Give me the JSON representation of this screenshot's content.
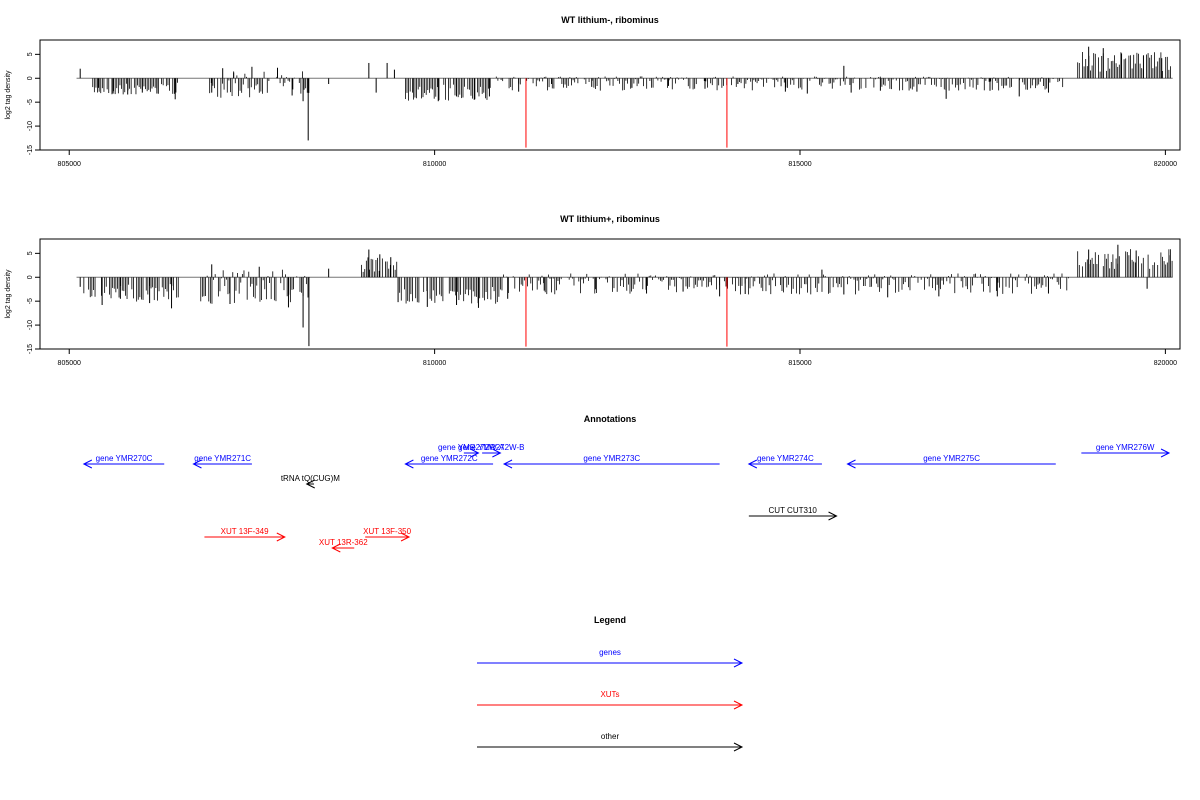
{
  "chart_data": [
    {
      "type": "bar",
      "title": "WT lithium-, ribominus",
      "ylabel": "log2 tag density",
      "xlabel": "",
      "xlim": [
        804600,
        820200
      ],
      "ylim": [
        -15,
        8
      ],
      "x_ticks": [
        805000,
        810000,
        815000,
        820000
      ],
      "y_ticks": [
        -15,
        -10,
        -5,
        0,
        5
      ],
      "baseline_range": [
        805100,
        820100
      ],
      "bar_color": "#000000",
      "highlight_color": "#ff0000",
      "highlights": [
        {
          "x": 811250,
          "y": -14.5
        },
        {
          "x": 814000,
          "y": -14.5
        }
      ],
      "spikes": [
        {
          "x": 805150,
          "y": 2
        },
        {
          "x": 805400,
          "y": -2
        },
        {
          "x": 805600,
          "y": -3.2
        },
        {
          "x": 805800,
          "y": -3.4
        },
        {
          "x": 806000,
          "y": -3.0
        },
        {
          "x": 806200,
          "y": -3.2
        },
        {
          "x": 806450,
          "y": -4.4
        },
        {
          "x": 806950,
          "y": -3.0
        },
        {
          "x": 807100,
          "y": 2.1
        },
        {
          "x": 807250,
          "y": 1.2
        },
        {
          "x": 807500,
          "y": 2.4
        },
        {
          "x": 807850,
          "y": 2.2
        },
        {
          "x": 808050,
          "y": -3.6
        },
        {
          "x": 808200,
          "y": -4.8
        },
        {
          "x": 808270,
          "y": -13
        },
        {
          "x": 808550,
          "y": -1.2
        },
        {
          "x": 809100,
          "y": 3.2
        },
        {
          "x": 809200,
          "y": -3.0
        },
        {
          "x": 809350,
          "y": 3.2
        },
        {
          "x": 809450,
          "y": 1.8
        },
        {
          "x": 809700,
          "y": -3.0
        },
        {
          "x": 810050,
          "y": -4.8
        },
        {
          "x": 810300,
          "y": -3.8
        },
        {
          "x": 810550,
          "y": -4.4
        },
        {
          "x": 810750,
          "y": -3.8
        },
        {
          "x": 811150,
          "y": -2.8
        },
        {
          "x": 811600,
          "y": -1.2
        },
        {
          "x": 812150,
          "y": -1.8
        },
        {
          "x": 812700,
          "y": -2.0
        },
        {
          "x": 813200,
          "y": -1.6
        },
        {
          "x": 813700,
          "y": -2.2
        },
        {
          "x": 814150,
          "y": -1.2
        },
        {
          "x": 814800,
          "y": -2.8
        },
        {
          "x": 815100,
          "y": -3.2
        },
        {
          "x": 815600,
          "y": 2.6
        },
        {
          "x": 815700,
          "y": -3.0
        },
        {
          "x": 816100,
          "y": -2.6
        },
        {
          "x": 816600,
          "y": -2.8
        },
        {
          "x": 817000,
          "y": -4.3
        },
        {
          "x": 817600,
          "y": -2.6
        },
        {
          "x": 818000,
          "y": -3.8
        },
        {
          "x": 818400,
          "y": -3.0
        },
        {
          "x": 818950,
          "y": 6.6
        },
        {
          "x": 819150,
          "y": 6.3
        },
        {
          "x": 819400,
          "y": 5.2
        },
        {
          "x": 819700,
          "y": 4.8
        },
        {
          "x": 819950,
          "y": 4.2
        }
      ],
      "dense_regions": [
        {
          "x_start": 805300,
          "x_end": 806500,
          "y_min": -3.5,
          "y_max": 0
        },
        {
          "x_start": 806900,
          "x_end": 808300,
          "y_min": -4.2,
          "y_max": 1.5
        },
        {
          "x_start": 809600,
          "x_end": 810800,
          "y_min": -4.8,
          "y_max": 0
        },
        {
          "x_start": 810800,
          "x_end": 818600,
          "y_min": -2.6,
          "y_max": 0.4
        },
        {
          "x_start": 818800,
          "x_end": 820100,
          "y_min": 0,
          "y_max": 5.5
        }
      ]
    },
    {
      "type": "bar",
      "title": "WT lithium+, ribominus",
      "ylabel": "log2 tag density",
      "xlabel": "",
      "xlim": [
        804600,
        820200
      ],
      "ylim": [
        -15,
        8
      ],
      "x_ticks": [
        805000,
        810000,
        815000,
        820000
      ],
      "y_ticks": [
        -15,
        -10,
        -5,
        0,
        5
      ],
      "baseline_range": [
        805100,
        820100
      ],
      "bar_color": "#000000",
      "highlight_color": "#ff0000",
      "highlights": [
        {
          "x": 811250,
          "y": -14.5
        },
        {
          "x": 814000,
          "y": -14.5
        }
      ],
      "spikes": [
        {
          "x": 805150,
          "y": -2
        },
        {
          "x": 805450,
          "y": -5.8
        },
        {
          "x": 805700,
          "y": -4.5
        },
        {
          "x": 806100,
          "y": -5.4
        },
        {
          "x": 806400,
          "y": -6.5
        },
        {
          "x": 806950,
          "y": 2.7
        },
        {
          "x": 807200,
          "y": -5.6
        },
        {
          "x": 807600,
          "y": 2.2
        },
        {
          "x": 808000,
          "y": -6.3
        },
        {
          "x": 808200,
          "y": -10.5
        },
        {
          "x": 808280,
          "y": -14.4
        },
        {
          "x": 808550,
          "y": 1.8
        },
        {
          "x": 809100,
          "y": 5.8
        },
        {
          "x": 809250,
          "y": 4.8
        },
        {
          "x": 809400,
          "y": 4.2
        },
        {
          "x": 809500,
          "y": -5.2
        },
        {
          "x": 809900,
          "y": -6.2
        },
        {
          "x": 810300,
          "y": -5.8
        },
        {
          "x": 810600,
          "y": -6.4
        },
        {
          "x": 811000,
          "y": -4.5
        },
        {
          "x": 811500,
          "y": -2.8
        },
        {
          "x": 812200,
          "y": -2.5
        },
        {
          "x": 812900,
          "y": -3.4
        },
        {
          "x": 813400,
          "y": -3.0
        },
        {
          "x": 813900,
          "y": -4.0
        },
        {
          "x": 814250,
          "y": -3.5
        },
        {
          "x": 815300,
          "y": 1.6
        },
        {
          "x": 815600,
          "y": -3.6
        },
        {
          "x": 816200,
          "y": -4.2
        },
        {
          "x": 816900,
          "y": -4.0
        },
        {
          "x": 817700,
          "y": -4.0
        },
        {
          "x": 818400,
          "y": -3.4
        },
        {
          "x": 818950,
          "y": 5.8
        },
        {
          "x": 819350,
          "y": 6.8
        },
        {
          "x": 819600,
          "y": 5.6
        },
        {
          "x": 819750,
          "y": -2.4
        },
        {
          "x": 820050,
          "y": 4.6
        }
      ],
      "dense_regions": [
        {
          "x_start": 805200,
          "x_end": 806500,
          "y_min": -5.2,
          "y_max": 0
        },
        {
          "x_start": 806800,
          "x_end": 808300,
          "y_min": -5.6,
          "y_max": 1.8
        },
        {
          "x_start": 809000,
          "x_end": 809500,
          "y_min": 0,
          "y_max": 4.2
        },
        {
          "x_start": 809500,
          "x_end": 810900,
          "y_min": -5.8,
          "y_max": 0
        },
        {
          "x_start": 810900,
          "x_end": 818700,
          "y_min": -3.6,
          "y_max": 0.8
        },
        {
          "x_start": 818800,
          "x_end": 820100,
          "y_min": 0,
          "y_max": 6
        }
      ]
    }
  ],
  "annotations": {
    "title": "Annotations",
    "features": [
      {
        "label": "gene YMR270C",
        "x_start": 806300,
        "x_end": 805200,
        "row": "gene-low",
        "type": "genes",
        "direction": "left"
      },
      {
        "label": "gene YMR271C",
        "x_start": 807500,
        "x_end": 806700,
        "row": "gene-low",
        "type": "genes",
        "direction": "left"
      },
      {
        "label": "gene YMR272C",
        "x_start": 810800,
        "x_end": 809600,
        "row": "gene-low",
        "type": "genes",
        "direction": "left"
      },
      {
        "label": "gene YMR273C",
        "x_start": 813900,
        "x_end": 810950,
        "row": "gene-low",
        "type": "genes",
        "direction": "left"
      },
      {
        "label": "gene YMR274C",
        "x_start": 815300,
        "x_end": 814300,
        "row": "gene-low",
        "type": "genes",
        "direction": "left"
      },
      {
        "label": "gene YMR275C",
        "x_start": 818500,
        "x_end": 815650,
        "row": "gene-low",
        "type": "genes",
        "direction": "left"
      },
      {
        "label": "gene YMR272W-A",
        "x_start": 810400,
        "x_end": 810600,
        "row": "gene-high",
        "type": "genes",
        "direction": "right"
      },
      {
        "label": "gene YMR272W-B",
        "x_start": 810650,
        "x_end": 810900,
        "row": "gene-high",
        "type": "genes",
        "direction": "right"
      },
      {
        "label": "gene YMR276W",
        "x_start": 818850,
        "x_end": 820050,
        "row": "gene-high",
        "type": "genes",
        "direction": "right"
      },
      {
        "label": "tRNA tQ(CUG)M",
        "x_start": 808350,
        "x_end": 808250,
        "row": "trna",
        "type": "other",
        "direction": "left"
      },
      {
        "label": "CUT CUT310",
        "x_start": 814300,
        "x_end": 815500,
        "row": "cut",
        "type": "other",
        "direction": "right"
      },
      {
        "label": "XUT 13F-349",
        "x_start": 806850,
        "x_end": 807950,
        "row": "xut-high",
        "type": "XUTs",
        "direction": "right"
      },
      {
        "label": "XUT 13F-350",
        "x_start": 809050,
        "x_end": 809650,
        "row": "xut-high",
        "type": "XUTs",
        "direction": "right"
      },
      {
        "label": "XUT 13R-362",
        "x_start": 808900,
        "x_end": 808600,
        "row": "xut-low",
        "type": "XUTs",
        "direction": "left"
      }
    ]
  },
  "legend": {
    "title": "Legend",
    "items": [
      {
        "label": "genes",
        "color": "#0000ff"
      },
      {
        "label": "XUTs",
        "color": "#ff0000"
      },
      {
        "label": "other",
        "color": "#000000"
      }
    ]
  },
  "colors": {
    "genes": "#0000ff",
    "XUTs": "#ff0000",
    "other": "#000000"
  }
}
